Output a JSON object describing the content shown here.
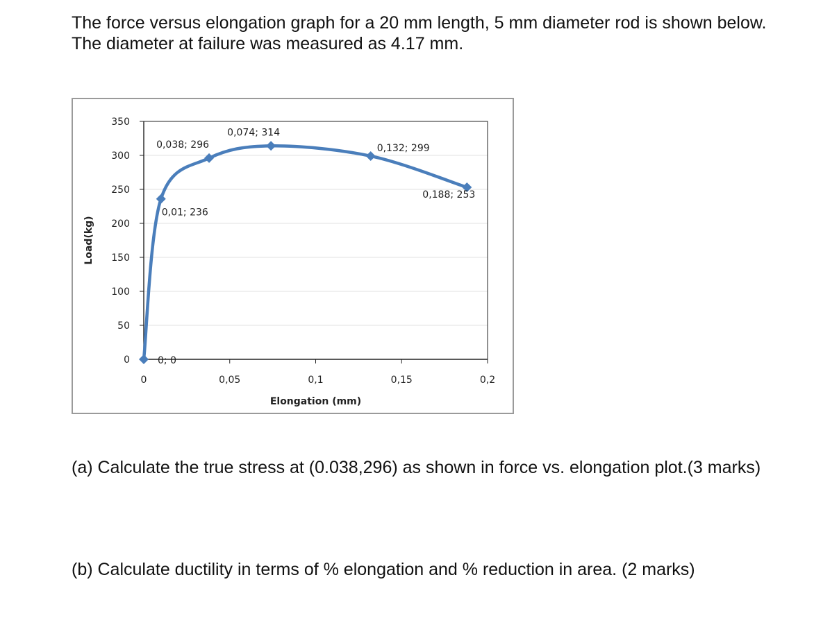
{
  "intro": "The force versus elongation graph for a 20 mm length, 5 mm diameter rod is shown below.  The diameter at failure was measured as 4.17 mm.",
  "questions": {
    "a": "(a) Calculate the true stress at (0.038,296) as shown in  force vs. elongation plot.(3 marks)",
    "b": "(b) Calculate ductility in terms of % elongation and % reduction in area. (2 marks)"
  },
  "chart_data": {
    "type": "line",
    "title": "",
    "xlabel": "Elongation (mm)",
    "ylabel": "Load(kg)",
    "xlim": [
      0,
      0.2
    ],
    "ylim": [
      0,
      350
    ],
    "x_ticks": [
      "0",
      "0,05",
      "0,1",
      "0,15",
      "0,2"
    ],
    "x_tick_values": [
      0,
      0.05,
      0.1,
      0.15,
      0.2
    ],
    "y_ticks": [
      "0",
      "50",
      "100",
      "150",
      "200",
      "250",
      "300",
      "350"
    ],
    "y_tick_values": [
      0,
      50,
      100,
      150,
      200,
      250,
      300,
      350
    ],
    "grid": "horizontal",
    "smooth": true,
    "line_color": "#4a7ebb",
    "marker": "diamond",
    "series": [
      {
        "x": [
          0,
          0.01,
          0.038,
          0.074,
          0.132,
          0.188
        ],
        "y": [
          0,
          236,
          296,
          314,
          299,
          253
        ],
        "labels": [
          "0; 0",
          "0,01; 236",
          "0,038; 296",
          "0,074; 314",
          "0,132; 299",
          "0,188; 253"
        ]
      }
    ]
  }
}
